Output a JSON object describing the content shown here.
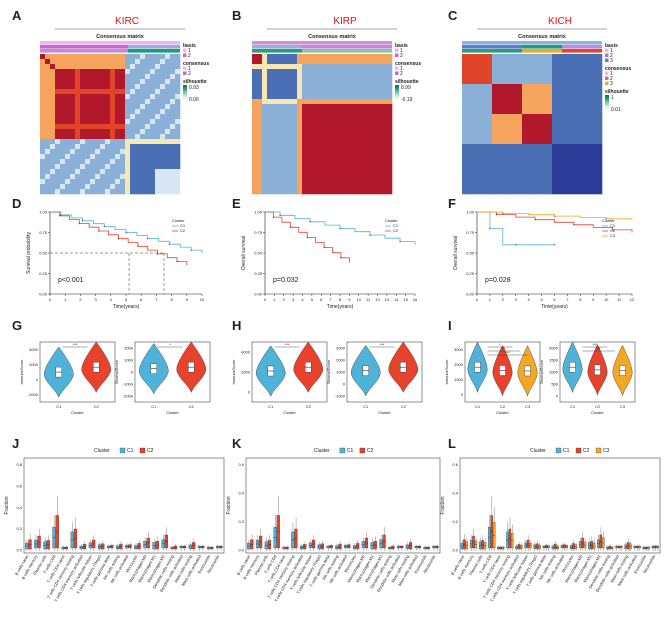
{
  "panel_letters": [
    "A",
    "B",
    "C",
    "D",
    "E",
    "F",
    "G",
    "H",
    "I",
    "J",
    "K",
    "L"
  ],
  "colors": {
    "red": "#d7191c",
    "blue": "#2c3e99",
    "darkred": "#b2182b",
    "c1": "#4fb3d9",
    "c2": "#e8412c",
    "c3": "#f5a623",
    "basis1": "#f0b4f0",
    "basis2": "#cc66cc",
    "basis3": "#6677cc",
    "teal": "#1a9e77",
    "title_red": "#e01010"
  },
  "consensus": [
    {
      "title": "KIRC",
      "matrix_title": "Consensus matrix",
      "legend": {
        "basis_label": "basis",
        "basis": [
          "1",
          "2"
        ],
        "consensus_label": "consensus",
        "consensus": [
          "1",
          "2"
        ],
        "silhouette_label": "silhouette",
        "sil_high": "0.93",
        "sil_low": "0.06"
      }
    },
    {
      "title": "KIRP",
      "matrix_title": "Consensus matrix",
      "legend": {
        "basis_label": "basis",
        "basis": [
          "1",
          "2"
        ],
        "consensus_label": "consensus",
        "consensus": [
          "1",
          "2"
        ],
        "silhouette_label": "silhouette",
        "sil_high": "0.99",
        "sil_low": "-0.19"
      }
    },
    {
      "title": "KICH",
      "matrix_title": "Consensus matrix",
      "legend": {
        "basis_label": "basis",
        "basis": [
          "1",
          "2",
          "3"
        ],
        "consensus_label": "consensus",
        "consensus": [
          "1",
          "2",
          "3"
        ],
        "silhouette_label": "silhouette",
        "sil_high": "1",
        "sil_low": "0.01"
      }
    }
  ],
  "chart_data": [
    {
      "type": "line",
      "panel": "D",
      "ylabel": "Survival probability",
      "xlabel": "Time(years)",
      "pvalue": "p<0.001",
      "legend_title": "Cluster",
      "series": [
        {
          "name": "C1"
        },
        {
          "name": "C2"
        }
      ],
      "xticks": [
        "0",
        "1",
        "2",
        "3",
        "4",
        "5",
        "6",
        "7",
        "8",
        "9",
        "10"
      ],
      "yticks": [
        "0.00",
        "0.25",
        "0.50",
        "0.75",
        "1.00"
      ],
      "xlim": [
        0,
        10
      ],
      "ylim": [
        0,
        1
      ],
      "median_times": [
        5.2,
        7.5
      ]
    },
    {
      "type": "line",
      "panel": "E",
      "ylabel": "Overall survival",
      "xlabel": "Time(years)",
      "pvalue": "p=0.032",
      "legend_title": "Cluster",
      "series": [
        {
          "name": "C1"
        },
        {
          "name": "C2"
        }
      ],
      "xticks": [
        "0",
        "1",
        "2",
        "3",
        "4",
        "5",
        "6",
        "7",
        "8",
        "9",
        "10",
        "11",
        "12",
        "13",
        "14",
        "15",
        "16"
      ],
      "yticks": [
        "0.00",
        "0.25",
        "0.50",
        "0.75",
        "1.00"
      ],
      "xlim": [
        0,
        16
      ],
      "ylim": [
        0,
        1
      ]
    },
    {
      "type": "line",
      "panel": "F",
      "ylabel": "Overall survival",
      "xlabel": "Time(years)",
      "pvalue": "p=0.028",
      "legend_title": "Cluster",
      "series": [
        {
          "name": "C1"
        },
        {
          "name": "C2"
        },
        {
          "name": "C3"
        }
      ],
      "xticks": [
        "0",
        "1",
        "2",
        "3",
        "4",
        "5",
        "6",
        "7",
        "8",
        "9",
        "10",
        "11",
        "12"
      ],
      "yticks": [
        "0.00",
        "0.25",
        "0.50",
        "0.75",
        "1.00"
      ],
      "xlim": [
        0,
        12
      ],
      "ylim": [
        0,
        1
      ]
    }
  ],
  "violins": [
    {
      "panel": "G",
      "plots": [
        {
          "ylabel": "ImmuneScore",
          "xlabel": "Cluster",
          "groups": [
            "C1",
            "C2"
          ],
          "sig": [
            "***"
          ],
          "yticks": [
            "-2000",
            "0",
            "2000",
            "4000"
          ],
          "medians": [
            700,
            1800
          ]
        },
        {
          "ylabel": "StromalScore",
          "xlabel": "Cluster",
          "groups": [
            "C1",
            "C2"
          ],
          "sig": [
            "*"
          ],
          "yticks": [
            "-2000",
            "-1000",
            "0",
            "1000",
            "2000"
          ],
          "medians": [
            650,
            800
          ]
        }
      ]
    },
    {
      "panel": "H",
      "plots": [
        {
          "ylabel": "ImmuneScore",
          "xlabel": "Cluster",
          "groups": [
            "C1",
            "C2"
          ],
          "sig": [
            "***"
          ],
          "yticks": [
            "0",
            "2000",
            "4000"
          ],
          "medians": [
            1000,
            1900
          ]
        },
        {
          "ylabel": "StromalScore",
          "xlabel": "Cluster",
          "groups": [
            "C1",
            "C2"
          ],
          "sig": [
            "***"
          ],
          "yticks": [
            "-1000",
            "0",
            "1000",
            "2000",
            "3000"
          ],
          "medians": [
            400,
            700
          ]
        }
      ]
    },
    {
      "panel": "I",
      "plots": [
        {
          "ylabel": "ImmuneScore",
          "xlabel": "Cluster",
          "groups": [
            "C1",
            "C2",
            "C3"
          ],
          "sig": [
            "*",
            "**",
            "***"
          ],
          "yticks": [
            "0",
            "1000",
            "2000",
            "3000"
          ],
          "medians": [
            1700,
            1000,
            900
          ]
        },
        {
          "ylabel": "StromalScore",
          "xlabel": "Cluster",
          "groups": [
            "C1",
            "C2",
            "C3"
          ],
          "sig": [
            "***",
            "**"
          ],
          "yticks": [
            "0",
            "500",
            "1000",
            "1500",
            "2000"
          ],
          "medians": [
            1200,
            800,
            700
          ]
        }
      ]
    }
  ],
  "boxplots": [
    {
      "panel": "J",
      "legend_title": "Cluster",
      "groups": [
        "C1",
        "C2"
      ],
      "ylabel": "Fraction",
      "yticks": [
        "0.0",
        "0.2",
        "0.4",
        "0.6",
        "0.8"
      ]
    },
    {
      "panel": "K",
      "legend_title": "Cluster",
      "groups": [
        "C1",
        "C2"
      ],
      "ylabel": "Fraction",
      "yticks": [
        "0.0",
        "0.2",
        "0.4",
        "0.6"
      ]
    },
    {
      "panel": "L",
      "legend_title": "Cluster",
      "groups": [
        "C1",
        "C2",
        "C3"
      ],
      "ylabel": "Fraction",
      "yticks": [
        "0.0",
        "0.2",
        "0.4",
        "0.6"
      ]
    }
  ],
  "cell_types": [
    "B cells naive",
    "B cells memory",
    "Plasma cells",
    "T cells CD8",
    "T cells CD4 naive",
    "T cells CD4 memory resting",
    "T cells CD4 memory activated",
    "T cells follicular helper",
    "T cells regulatory (Tregs)",
    "T cells gamma delta",
    "NK cells resting",
    "NK cells activated",
    "Monocytes",
    "Macrophages M0",
    "Macrophages M1",
    "Macrophages M2",
    "Dendritic cells resting",
    "Dendritic cells activated",
    "Mast cells resting",
    "Mast cells activated",
    "Eosinophils",
    "Neutrophils"
  ]
}
